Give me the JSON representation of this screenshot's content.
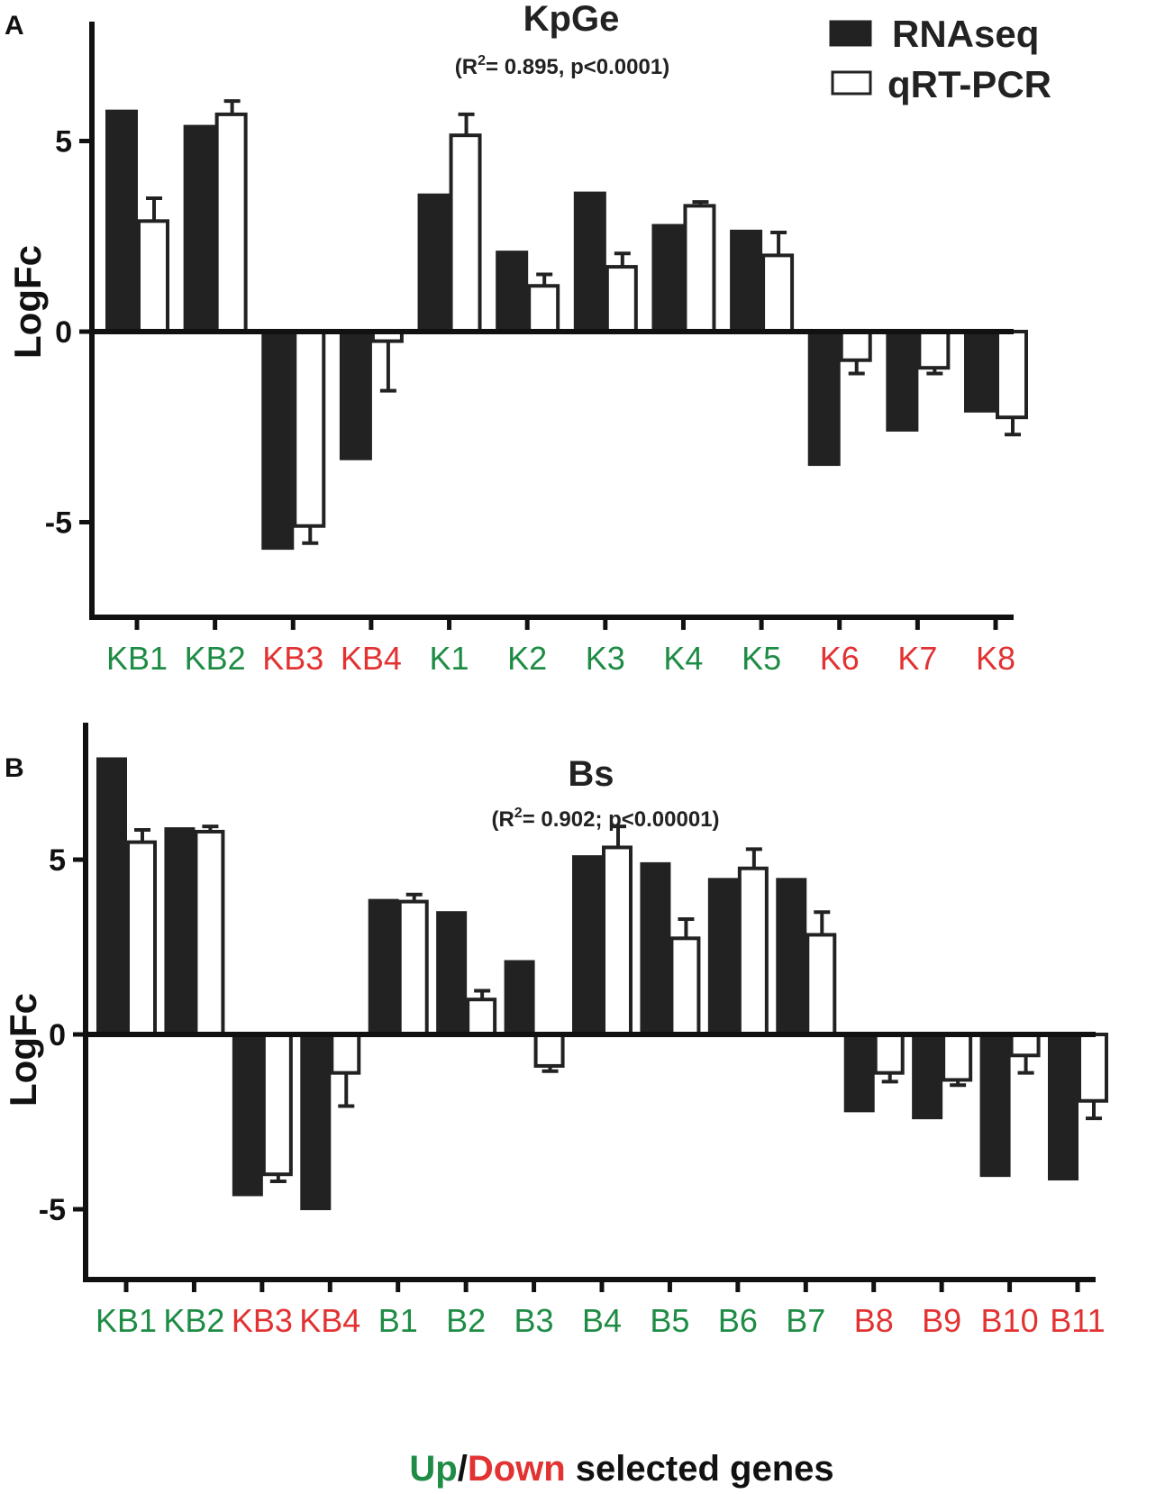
{
  "colors": {
    "rnaseq": "#222222",
    "qrtpcr": "#ffffff",
    "up": "#1e8c45",
    "down": "#e23232",
    "axis": "#111111"
  },
  "legend": {
    "rnaseq_label": "RNAseq",
    "qrtpcr_label": "qRT-PCR"
  },
  "footer": {
    "up": "Up",
    "slash": "/",
    "down": "Down",
    "rest": " selected genes"
  },
  "chart_data": [
    {
      "type": "bar",
      "panel_letter": "A",
      "title": "KpGe",
      "subtitle_pre": "(R",
      "subtitle_sup": "2",
      "subtitle_post": "= 0.895, p<0.0001)",
      "ylabel": "LogFc",
      "ylim": [
        -7.5,
        8.5
      ],
      "yticks": [
        5,
        0,
        -5
      ],
      "yticklabels": [
        "5",
        "0",
        "-5"
      ],
      "categories": [
        "KB1",
        "KB2",
        "KB3",
        "KB4",
        "K1",
        "K2",
        "K3",
        "K4",
        "K5",
        "K6",
        "K7",
        "K8"
      ],
      "direction": [
        "up",
        "up",
        "down",
        "down",
        "up",
        "up",
        "up",
        "up",
        "up",
        "down",
        "down",
        "down"
      ],
      "series": [
        {
          "name": "RNAseq",
          "values": [
            5.8,
            5.4,
            -5.7,
            -3.35,
            3.6,
            2.1,
            3.65,
            2.8,
            2.65,
            -3.5,
            -2.6,
            -2.1
          ]
        },
        {
          "name": "qRT-PCR",
          "values": [
            2.9,
            5.7,
            -5.1,
            -0.25,
            5.15,
            1.2,
            1.7,
            3.3,
            2.0,
            -0.75,
            -0.95,
            -2.25
          ],
          "error": [
            0.6,
            0.35,
            0.45,
            1.3,
            0.55,
            0.3,
            0.35,
            0.1,
            0.6,
            0.35,
            0.15,
            0.45
          ]
        }
      ]
    },
    {
      "type": "bar",
      "panel_letter": "B",
      "title": "Bs",
      "subtitle_pre": "(R",
      "subtitle_sup": "2",
      "subtitle_post": "= 0.902; p<0.00001)",
      "ylabel": "LogFc",
      "ylim": [
        -7,
        8
      ],
      "yticks": [
        5,
        0,
        -5
      ],
      "yticklabels": [
        "5",
        "0",
        "-5"
      ],
      "categories": [
        "KB1",
        "KB2",
        "KB3",
        "KB4",
        "B1",
        "B2",
        "B3",
        "B4",
        "B5",
        "B6",
        "B7",
        "B8",
        "B9",
        "B10",
        "B11"
      ],
      "direction": [
        "up",
        "up",
        "down",
        "down",
        "up",
        "up",
        "up",
        "up",
        "up",
        "up",
        "up",
        "down",
        "down",
        "down",
        "down"
      ],
      "series": [
        {
          "name": "RNAseq",
          "values": [
            7.9,
            5.9,
            -4.6,
            -5.0,
            3.85,
            3.5,
            2.1,
            5.1,
            4.9,
            4.45,
            4.45,
            -2.2,
            -2.4,
            -4.05,
            -4.15
          ]
        },
        {
          "name": "qRT-PCR",
          "values": [
            5.5,
            5.8,
            -4.0,
            -1.1,
            3.8,
            1.0,
            -0.9,
            5.35,
            2.75,
            4.75,
            2.85,
            -1.1,
            -1.3,
            -0.6,
            -1.9
          ],
          "error": [
            0.35,
            0.15,
            0.2,
            0.95,
            0.2,
            0.25,
            0.15,
            0.6,
            0.55,
            0.55,
            0.65,
            0.25,
            0.15,
            0.5,
            0.5
          ]
        }
      ]
    }
  ]
}
